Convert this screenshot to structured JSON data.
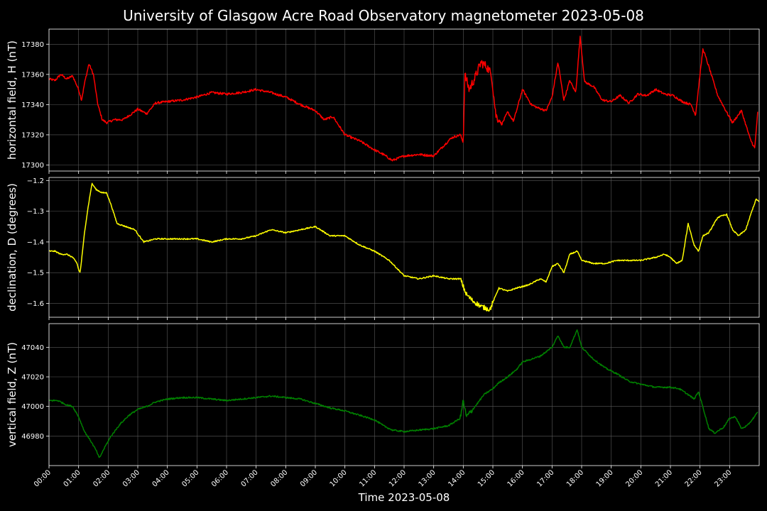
{
  "chart_data": {
    "type": "line",
    "title": "University of Glasgow Acre Road Observatory magnetometer 2023-05-08",
    "xlabel": "Time 2023-05-08",
    "xlim": [
      0,
      24
    ],
    "x_ticks": [
      "00:00",
      "01:00",
      "02:00",
      "03:00",
      "04:00",
      "05:00",
      "06:00",
      "07:00",
      "08:00",
      "09:00",
      "10:00",
      "11:00",
      "12:00",
      "13:00",
      "14:00",
      "15:00",
      "16:00",
      "17:00",
      "18:00",
      "19:00",
      "20:00",
      "21:00",
      "22:00",
      "23:00"
    ],
    "grid": true,
    "background": "#000000",
    "panels": [
      {
        "ylabel": "horizontal field, H (nT)",
        "color": "#ff0000",
        "ylim": [
          17296,
          17390
        ],
        "y_ticks": [
          "17300",
          "17320",
          "17340",
          "17360",
          "17380"
        ],
        "x": [
          0,
          0.2,
          0.4,
          0.6,
          0.8,
          1.0,
          1.1,
          1.2,
          1.35,
          1.5,
          1.65,
          1.8,
          1.95,
          2.2,
          2.5,
          2.8,
          3.0,
          3.3,
          3.6,
          4.0,
          4.5,
          5.0,
          5.5,
          6.0,
          6.5,
          7.0,
          7.5,
          8.0,
          8.5,
          9.0,
          9.3,
          9.6,
          10.0,
          10.5,
          11.0,
          11.3,
          11.6,
          12.0,
          12.5,
          13.0,
          13.3,
          13.6,
          13.9,
          14.0,
          14.05,
          14.2,
          14.4,
          14.6,
          14.8,
          14.95,
          15.1,
          15.3,
          15.5,
          15.7,
          16.0,
          16.3,
          16.5,
          16.8,
          17.0,
          17.2,
          17.4,
          17.6,
          17.8,
          17.95,
          18.1,
          18.4,
          18.7,
          19.0,
          19.3,
          19.6,
          19.9,
          20.2,
          20.5,
          20.8,
          21.1,
          21.4,
          21.7,
          21.85,
          22.0,
          22.1,
          22.3,
          22.6,
          22.9,
          23.1,
          23.4,
          23.7,
          23.85,
          23.95
        ],
        "y": [
          17357,
          17356,
          17360,
          17357,
          17359,
          17350,
          17343,
          17354,
          17367,
          17360,
          17340,
          17330,
          17328,
          17330,
          17330,
          17334,
          17337,
          17334,
          17341,
          17342,
          17343,
          17345,
          17348,
          17347,
          17348,
          17350,
          17348,
          17345,
          17340,
          17336,
          17330,
          17332,
          17320,
          17316,
          17310,
          17307,
          17303,
          17306,
          17307,
          17306,
          17312,
          17318,
          17320,
          17315,
          17360,
          17350,
          17358,
          17368,
          17365,
          17360,
          17333,
          17327,
          17335,
          17329,
          17350,
          17340,
          17338,
          17336,
          17345,
          17368,
          17343,
          17356,
          17348,
          17385,
          17355,
          17352,
          17343,
          17342,
          17346,
          17341,
          17347,
          17346,
          17350,
          17347,
          17346,
          17342,
          17340,
          17333,
          17360,
          17377,
          17365,
          17346,
          17335,
          17328,
          17336,
          17317,
          17311,
          17335
        ],
        "dense_from": 14.0,
        "dense_to": 15.2,
        "noise": 3.0
      },
      {
        "ylabel": "declination, D (degrees)",
        "color": "#ffff00",
        "ylim": [
          -1.645,
          -1.19
        ],
        "y_ticks": [
          "−1.6",
          "−1.5",
          "−1.4",
          "−1.3",
          "−1.2"
        ],
        "x": [
          0,
          0.2,
          0.4,
          0.6,
          0.8,
          0.95,
          1.0,
          1.05,
          1.1,
          1.2,
          1.3,
          1.45,
          1.6,
          1.8,
          1.95,
          2.1,
          2.3,
          2.6,
          2.9,
          3.2,
          3.6,
          4.0,
          4.5,
          5.0,
          5.5,
          6.0,
          6.5,
          7.0,
          7.5,
          8.0,
          8.5,
          9.0,
          9.5,
          10.0,
          10.5,
          11.0,
          11.5,
          12.0,
          12.5,
          13.0,
          13.5,
          13.9,
          14.1,
          14.3,
          14.6,
          14.9,
          15.2,
          15.5,
          15.8,
          16.2,
          16.6,
          16.8,
          17.0,
          17.2,
          17.4,
          17.6,
          17.85,
          18.0,
          18.4,
          18.8,
          19.2,
          19.6,
          20.0,
          20.5,
          20.8,
          21.0,
          21.2,
          21.4,
          21.6,
          21.8,
          21.95,
          22.1,
          22.3,
          22.6,
          22.9,
          23.1,
          23.3,
          23.55,
          23.75,
          23.9,
          24.0
        ],
        "y": [
          -1.43,
          -1.43,
          -1.44,
          -1.44,
          -1.45,
          -1.47,
          -1.49,
          -1.5,
          -1.46,
          -1.37,
          -1.3,
          -1.21,
          -1.23,
          -1.24,
          -1.24,
          -1.28,
          -1.34,
          -1.35,
          -1.36,
          -1.4,
          -1.39,
          -1.39,
          -1.39,
          -1.39,
          -1.4,
          -1.39,
          -1.39,
          -1.38,
          -1.36,
          -1.37,
          -1.36,
          -1.35,
          -1.38,
          -1.38,
          -1.41,
          -1.43,
          -1.46,
          -1.51,
          -1.52,
          -1.51,
          -1.52,
          -1.52,
          -1.57,
          -1.59,
          -1.61,
          -1.62,
          -1.55,
          -1.56,
          -1.55,
          -1.54,
          -1.52,
          -1.53,
          -1.48,
          -1.47,
          -1.5,
          -1.44,
          -1.43,
          -1.46,
          -1.47,
          -1.47,
          -1.46,
          -1.46,
          -1.46,
          -1.45,
          -1.44,
          -1.45,
          -1.47,
          -1.46,
          -1.34,
          -1.41,
          -1.43,
          -1.38,
          -1.37,
          -1.32,
          -1.31,
          -1.36,
          -1.38,
          -1.36,
          -1.3,
          -1.26,
          -1.27
        ],
        "dense_from": 13.9,
        "dense_to": 15.0,
        "noise": 0.008
      },
      {
        "ylabel": "vertical field, Z (nT)",
        "color": "#008000",
        "ylim": [
          46960,
          47056
        ],
        "y_ticks": [
          "46980",
          "47000",
          "47020",
          "47040"
        ],
        "x": [
          0,
          0.3,
          0.6,
          0.8,
          1.0,
          1.2,
          1.4,
          1.6,
          1.7,
          1.9,
          2.1,
          2.4,
          2.7,
          3.0,
          3.3,
          3.6,
          4.0,
          4.5,
          5.0,
          5.5,
          6.0,
          6.5,
          7.0,
          7.5,
          8.0,
          8.5,
          9.0,
          9.5,
          10.0,
          10.5,
          11.0,
          11.3,
          11.6,
          12.0,
          12.5,
          13.0,
          13.5,
          13.9,
          14.0,
          14.1,
          14.2,
          14.4,
          14.7,
          15.0,
          15.2,
          15.5,
          15.8,
          16.0,
          16.3,
          16.6,
          16.8,
          17.0,
          17.2,
          17.4,
          17.6,
          17.85,
          18.0,
          18.4,
          18.8,
          19.2,
          19.6,
          20.0,
          20.5,
          21.0,
          21.3,
          21.6,
          21.8,
          21.95,
          22.05,
          22.3,
          22.5,
          22.8,
          23.0,
          23.2,
          23.4,
          23.6,
          23.8,
          23.95
        ],
        "y": [
          47004,
          47004,
          47001,
          47000,
          46993,
          46983,
          46977,
          46970,
          46965,
          46973,
          46980,
          46988,
          46994,
          46998,
          47000,
          47003,
          47005,
          47006,
          47006,
          47005,
          47004,
          47005,
          47006,
          47007,
          47006,
          47005,
          47002,
          46999,
          46997,
          46994,
          46991,
          46987,
          46984,
          46983,
          46984,
          46985,
          46987,
          46992,
          47004,
          46993,
          46995,
          47000,
          47008,
          47012,
          47016,
          47020,
          47025,
          47030,
          47032,
          47034,
          47037,
          47040,
          47048,
          47040,
          47040,
          47052,
          47040,
          47032,
          47026,
          47022,
          47017,
          47015,
          47013,
          47013,
          47012,
          47008,
          47005,
          47010,
          47003,
          46985,
          46982,
          46986,
          46992,
          46993,
          46985,
          46987,
          46992,
          46996
        ],
        "dense_from": 13.9,
        "dense_to": 14.3,
        "noise": 2.0
      }
    ]
  }
}
